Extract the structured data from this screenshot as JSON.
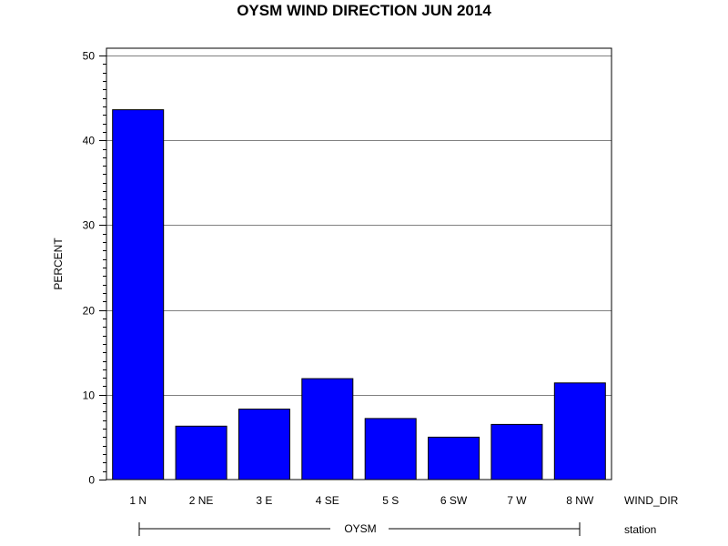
{
  "chart_data": {
    "type": "bar",
    "title": "OYSM WIND DIRECTION JUN 2014",
    "ylabel": "PERCENT",
    "xlabel": "WIND_DIR",
    "group_axis_label": "station",
    "group_name": "OYSM",
    "categories": [
      "1 N",
      "2 NE",
      "3 E",
      "4 SE",
      "5 S",
      "6 SW",
      "7 W",
      "8 NW"
    ],
    "values": [
      43.6,
      6.3,
      8.3,
      11.9,
      7.2,
      5.0,
      6.5,
      11.4
    ],
    "ylim": [
      0,
      50
    ],
    "yticks": [
      0,
      10,
      20,
      30,
      40,
      50
    ],
    "grid": true,
    "colors": {
      "bar": "#0000ff",
      "bar_stroke": "#000000",
      "grid": "#808080"
    }
  }
}
